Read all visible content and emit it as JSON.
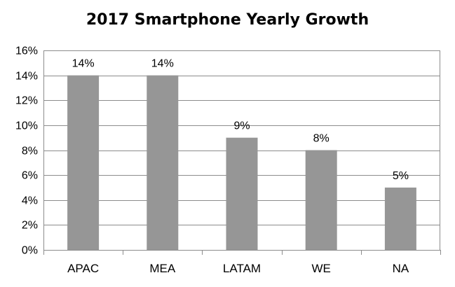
{
  "chart_data": {
    "type": "bar",
    "title": "2017 Smartphone Yearly Growth",
    "xlabel": "",
    "ylabel": "",
    "categories": [
      "APAC",
      "MEA",
      "LATAM",
      "WE",
      "NA"
    ],
    "values": [
      14,
      14,
      9,
      8,
      5
    ],
    "value_labels": [
      "14%",
      "14%",
      "9%",
      "8%",
      "5%"
    ],
    "ylim": [
      0,
      16
    ],
    "y_ticks": [
      0,
      2,
      4,
      6,
      8,
      10,
      12,
      14,
      16
    ],
    "y_tick_labels": [
      "0%",
      "2%",
      "4%",
      "6%",
      "8%",
      "10%",
      "12%",
      "14%",
      "16%"
    ],
    "grid": true,
    "legend": "none",
    "colors": {
      "bar": "#969696",
      "grid": "#8c8c8c",
      "axis": "#8c8c8c"
    }
  }
}
